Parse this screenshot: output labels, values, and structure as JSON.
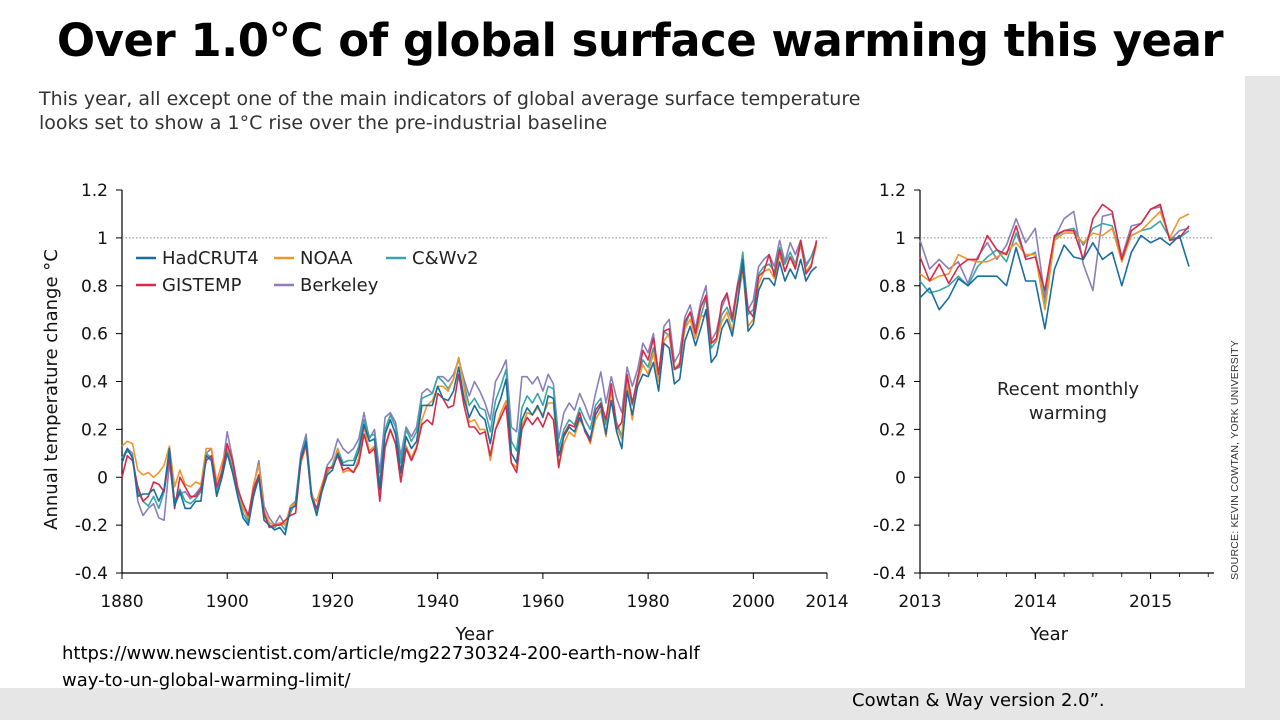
{
  "slide": {
    "title": "Over 1.0°C of global surface warming this year",
    "subtitle_lines": [
      "This year, all except one of the main indicators of global average surface temperature",
      "looks set to show a 1°C rise over the pre-industrial baseline"
    ],
    "url": "https://www.newscientist.com/article/mg22730324-200-earth-now-halfway-to-un-global-warming-limit/",
    "footnote": "Cowtan & Way version 2.0”.",
    "source": "SOURCE: KEVIN COWTAN, YORK UNIVERSITY"
  },
  "colors": {
    "HadCRUT4": "#1a6e9e",
    "NOAA": "#f0962d",
    "C&Wv2": "#3aa6a6",
    "GISTEMP": "#d62a4a",
    "Berkeley": "#8a7fba",
    "reference_line": "#888888"
  },
  "chart_data": [
    {
      "type": "line",
      "xlabel": "Year",
      "ylabel": "Annual temperature change °C",
      "xlim": [
        1880,
        2014
      ],
      "ylim": [
        -0.4,
        1.2
      ],
      "xticks": [
        "1880",
        "1900",
        "1920",
        "1940",
        "1960",
        "1980",
        "2000",
        "2014"
      ],
      "yticks": [
        "1.2",
        "1",
        "0.8",
        "0.6",
        "0.4",
        "0.2",
        "0",
        "-0.2",
        "-0.4"
      ],
      "reference_line_y": 1.0,
      "legend": [
        "HadCRUT4",
        "NOAA",
        "C&Wv2",
        "GISTEMP",
        "Berkeley"
      ],
      "legend_position": "top-left",
      "x_start": 1880,
      "series": [
        {
          "name": "HadCRUT4",
          "values": [
            0.06,
            0.12,
            0.08,
            -0.08,
            -0.07,
            -0.07,
            -0.05,
            -0.1,
            -0.05,
            0.12,
            -0.12,
            -0.06,
            -0.13,
            -0.13,
            -0.1,
            -0.1,
            0.09,
            0.07,
            -0.08,
            0.0,
            0.1,
            0.02,
            -0.08,
            -0.17,
            -0.2,
            -0.08,
            0.0,
            -0.18,
            -0.2,
            -0.22,
            -0.21,
            -0.24,
            -0.13,
            -0.12,
            0.08,
            0.15,
            -0.08,
            -0.16,
            -0.06,
            0.01,
            0.03,
            0.1,
            0.05,
            0.05,
            0.05,
            0.11,
            0.22,
            0.15,
            0.16,
            -0.05,
            0.18,
            0.24,
            0.18,
            0.02,
            0.17,
            0.12,
            0.15,
            0.3,
            0.3,
            0.3,
            0.38,
            0.33,
            0.32,
            0.36,
            0.46,
            0.33,
            0.25,
            0.3,
            0.26,
            0.24,
            0.14,
            0.27,
            0.33,
            0.41,
            0.1,
            0.06,
            0.24,
            0.29,
            0.26,
            0.3,
            0.25,
            0.34,
            0.33,
            0.09,
            0.17,
            0.21,
            0.19,
            0.25,
            0.2,
            0.16,
            0.26,
            0.3,
            0.18,
            0.32,
            0.19,
            0.12,
            0.36,
            0.26,
            0.38,
            0.43,
            0.42,
            0.48,
            0.36,
            0.56,
            0.54,
            0.39,
            0.41,
            0.57,
            0.63,
            0.55,
            0.62,
            0.7,
            0.48,
            0.51,
            0.62,
            0.66,
            0.59,
            0.73,
            0.91,
            0.61,
            0.64,
            0.78,
            0.83,
            0.83,
            0.8,
            0.9,
            0.82,
            0.87,
            0.83,
            0.91,
            0.82,
            0.86,
            0.88
          ]
        },
        {
          "name": "NOAA",
          "values": [
            0.13,
            0.15,
            0.14,
            0.03,
            0.01,
            0.02,
            0.0,
            0.02,
            0.05,
            0.13,
            -0.04,
            0.03,
            -0.03,
            -0.04,
            -0.02,
            -0.03,
            0.12,
            0.12,
            -0.02,
            0.06,
            0.13,
            0.06,
            -0.04,
            -0.13,
            -0.17,
            -0.03,
            0.05,
            -0.14,
            -0.19,
            -0.2,
            -0.19,
            -0.2,
            -0.12,
            -0.11,
            0.06,
            0.13,
            -0.08,
            -0.1,
            -0.03,
            0.03,
            0.04,
            0.12,
            0.02,
            0.03,
            0.02,
            0.08,
            0.21,
            0.11,
            0.13,
            -0.06,
            0.12,
            0.2,
            0.14,
            0.0,
            0.13,
            0.08,
            0.13,
            0.24,
            0.3,
            0.32,
            0.38,
            0.38,
            0.36,
            0.41,
            0.5,
            0.38,
            0.23,
            0.24,
            0.2,
            0.2,
            0.07,
            0.2,
            0.27,
            0.32,
            0.06,
            0.04,
            0.21,
            0.27,
            0.26,
            0.29,
            0.26,
            0.31,
            0.31,
            0.05,
            0.14,
            0.19,
            0.17,
            0.24,
            0.2,
            0.14,
            0.24,
            0.28,
            0.17,
            0.38,
            0.21,
            0.16,
            0.39,
            0.24,
            0.4,
            0.47,
            0.43,
            0.52,
            0.4,
            0.57,
            0.6,
            0.45,
            0.48,
            0.62,
            0.66,
            0.58,
            0.67,
            0.68,
            0.56,
            0.57,
            0.65,
            0.69,
            0.61,
            0.74,
            0.86,
            0.63,
            0.66,
            0.81,
            0.86,
            0.87,
            0.83,
            0.93,
            0.86,
            0.92,
            0.88,
            0.97,
            0.86,
            0.89,
            0.97
          ]
        },
        {
          "name": "C&Wv2",
          "values": [
            0.08,
            0.11,
            0.09,
            -0.06,
            -0.1,
            -0.12,
            -0.08,
            -0.13,
            -0.06,
            0.11,
            -0.1,
            -0.05,
            -0.1,
            -0.11,
            -0.09,
            -0.06,
            0.1,
            0.08,
            -0.07,
            0.01,
            0.12,
            0.04,
            -0.07,
            -0.15,
            -0.19,
            -0.07,
            0.01,
            -0.16,
            -0.2,
            -0.21,
            -0.19,
            -0.22,
            -0.12,
            -0.1,
            0.08,
            0.16,
            -0.07,
            -0.14,
            -0.05,
            0.02,
            0.05,
            0.12,
            0.06,
            0.07,
            0.07,
            0.13,
            0.24,
            0.17,
            0.18,
            -0.03,
            0.2,
            0.26,
            0.21,
            0.06,
            0.2,
            0.15,
            0.19,
            0.33,
            0.34,
            0.35,
            0.42,
            0.4,
            0.37,
            0.41,
            0.5,
            0.39,
            0.3,
            0.33,
            0.29,
            0.28,
            0.19,
            0.32,
            0.38,
            0.45,
            0.15,
            0.11,
            0.29,
            0.34,
            0.31,
            0.35,
            0.3,
            0.38,
            0.37,
            0.12,
            0.2,
            0.24,
            0.22,
            0.29,
            0.24,
            0.2,
            0.3,
            0.33,
            0.22,
            0.36,
            0.23,
            0.17,
            0.41,
            0.3,
            0.42,
            0.49,
            0.46,
            0.54,
            0.41,
            0.61,
            0.59,
            0.45,
            0.46,
            0.63,
            0.69,
            0.6,
            0.67,
            0.75,
            0.54,
            0.57,
            0.68,
            0.71,
            0.65,
            0.79,
            0.94,
            0.68,
            0.7,
            0.85,
            0.88,
            0.89,
            0.86,
            0.96,
            0.89,
            0.94,
            0.89,
            0.98,
            0.88,
            0.92,
            0.98
          ]
        },
        {
          "name": "GISTEMP",
          "values": [
            0.0,
            0.09,
            0.07,
            -0.04,
            -0.1,
            -0.08,
            -0.02,
            -0.03,
            -0.06,
            0.09,
            -0.13,
            0.0,
            -0.04,
            -0.08,
            -0.08,
            -0.05,
            0.07,
            0.09,
            -0.04,
            0.02,
            0.14,
            0.07,
            -0.05,
            -0.11,
            -0.16,
            -0.05,
            0.01,
            -0.15,
            -0.21,
            -0.2,
            -0.2,
            -0.18,
            -0.16,
            -0.15,
            0.07,
            0.14,
            -0.08,
            -0.13,
            -0.05,
            0.04,
            0.04,
            0.09,
            0.03,
            0.04,
            0.02,
            0.06,
            0.18,
            0.1,
            0.12,
            -0.1,
            0.13,
            0.2,
            0.14,
            -0.02,
            0.12,
            0.07,
            0.12,
            0.22,
            0.24,
            0.22,
            0.35,
            0.33,
            0.29,
            0.3,
            0.43,
            0.3,
            0.21,
            0.21,
            0.18,
            0.19,
            0.09,
            0.2,
            0.25,
            0.3,
            0.06,
            0.02,
            0.2,
            0.25,
            0.22,
            0.25,
            0.21,
            0.27,
            0.24,
            0.04,
            0.18,
            0.22,
            0.21,
            0.27,
            0.19,
            0.15,
            0.28,
            0.31,
            0.24,
            0.39,
            0.2,
            0.23,
            0.43,
            0.31,
            0.41,
            0.53,
            0.49,
            0.58,
            0.43,
            0.61,
            0.62,
            0.45,
            0.47,
            0.65,
            0.69,
            0.6,
            0.71,
            0.76,
            0.56,
            0.58,
            0.73,
            0.77,
            0.66,
            0.8,
            0.87,
            0.7,
            0.67,
            0.84,
            0.86,
            0.93,
            0.84,
            0.95,
            0.86,
            0.92,
            0.87,
            0.99,
            0.85,
            0.88,
            0.99
          ]
        },
        {
          "name": "Berkeley",
          "values": [
            0.08,
            0.12,
            0.1,
            -0.1,
            -0.16,
            -0.13,
            -0.11,
            -0.17,
            -0.18,
            0.06,
            -0.11,
            -0.07,
            -0.06,
            -0.09,
            -0.07,
            -0.04,
            0.1,
            0.12,
            -0.05,
            0.03,
            0.19,
            0.08,
            -0.04,
            -0.12,
            -0.18,
            -0.04,
            0.07,
            -0.12,
            -0.17,
            -0.2,
            -0.16,
            -0.2,
            -0.15,
            -0.1,
            0.1,
            0.18,
            -0.06,
            -0.14,
            -0.04,
            0.05,
            0.08,
            0.16,
            0.12,
            0.1,
            0.12,
            0.16,
            0.27,
            0.16,
            0.2,
            0.02,
            0.25,
            0.27,
            0.23,
            0.09,
            0.21,
            0.17,
            0.21,
            0.35,
            0.37,
            0.35,
            0.42,
            0.42,
            0.4,
            0.43,
            0.49,
            0.41,
            0.34,
            0.4,
            0.36,
            0.31,
            0.24,
            0.4,
            0.44,
            0.49,
            0.21,
            0.19,
            0.42,
            0.42,
            0.39,
            0.42,
            0.36,
            0.43,
            0.39,
            0.16,
            0.27,
            0.31,
            0.28,
            0.35,
            0.3,
            0.24,
            0.35,
            0.44,
            0.31,
            0.42,
            0.33,
            0.27,
            0.46,
            0.38,
            0.45,
            0.56,
            0.52,
            0.6,
            0.42,
            0.63,
            0.66,
            0.48,
            0.52,
            0.67,
            0.72,
            0.62,
            0.73,
            0.8,
            0.57,
            0.61,
            0.71,
            0.76,
            0.67,
            0.81,
            0.92,
            0.7,
            0.74,
            0.88,
            0.91,
            0.93,
            0.88,
            0.99,
            0.9,
            0.98,
            0.93,
            0.99,
            0.89,
            0.92,
            0.98
          ]
        }
      ]
    },
    {
      "type": "line",
      "xlabel": "Year",
      "annotation": "Recent monthly warming",
      "xlim": [
        2013,
        2015.55
      ],
      "ylim": [
        -0.4,
        1.2
      ],
      "xticks": [
        "2013",
        "2014",
        "2015"
      ],
      "yticks": [
        "1.2",
        "1",
        "0.8",
        "0.6",
        "0.4",
        "0.2",
        "0",
        "-0.2",
        "-0.4"
      ],
      "reference_line_y": 1.0,
      "x_start": 2013.0,
      "x_step_months": 1,
      "series": [
        {
          "name": "HadCRUT4",
          "values": [
            0.75,
            0.79,
            0.7,
            0.75,
            0.83,
            0.8,
            0.84,
            0.84,
            0.84,
            0.8,
            0.96,
            0.82,
            0.82,
            0.62,
            0.87,
            0.97,
            0.92,
            0.91,
            0.98,
            0.91,
            0.94,
            0.8,
            0.94,
            1.01,
            0.98,
            1.0,
            0.97,
            1.01,
            0.88
          ]
        },
        {
          "name": "NOAA",
          "values": [
            0.85,
            0.82,
            0.84,
            0.85,
            0.93,
            0.91,
            0.9,
            0.9,
            0.92,
            0.94,
            0.98,
            0.93,
            0.93,
            0.7,
            0.99,
            1.02,
            1.02,
            0.98,
            1.02,
            1.01,
            1.04,
            0.9,
            1.01,
            1.03,
            1.07,
            1.11,
            1.0,
            1.08,
            1.1
          ]
        },
        {
          "name": "C&Wv2",
          "values": [
            0.82,
            0.77,
            0.78,
            0.8,
            0.84,
            0.8,
            0.88,
            0.92,
            0.95,
            0.9,
            1.02,
            0.92,
            0.94,
            0.72,
            1.0,
            1.03,
            1.04,
            0.97,
            1.04,
            1.06,
            1.05,
            0.91,
            1.01,
            1.03,
            1.04,
            1.07,
            1.0,
            1.0,
            1.03
          ]
        },
        {
          "name": "GISTEMP",
          "values": [
            0.92,
            0.82,
            0.89,
            0.81,
            0.88,
            0.91,
            0.91,
            1.01,
            0.95,
            0.93,
            1.05,
            0.91,
            0.92,
            0.78,
            1.01,
            1.03,
            1.03,
            0.91,
            1.08,
            1.14,
            1.11,
            0.91,
            1.03,
            1.06,
            1.12,
            1.14,
            0.99,
            1.0,
            1.05
          ]
        },
        {
          "name": "Berkeley",
          "values": [
            0.99,
            0.87,
            0.91,
            0.87,
            0.9,
            0.81,
            0.92,
            0.98,
            0.91,
            0.97,
            1.08,
            0.98,
            1.04,
            0.75,
            1.0,
            1.08,
            1.11,
            0.89,
            0.78,
            1.09,
            1.1,
            0.92,
            1.05,
            1.06,
            1.12,
            1.13,
            0.99,
            1.03,
            1.04
          ]
        }
      ]
    }
  ]
}
